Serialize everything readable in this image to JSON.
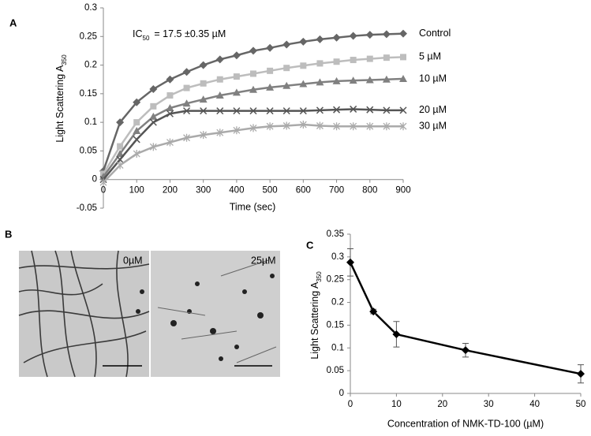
{
  "chart_data": [
    {
      "type": "line",
      "panel_label": "A",
      "annotation": {
        "text_before": "IC",
        "subscript": "50",
        "text_after": "= 17.5 ±0.35 µM"
      },
      "y_label": {
        "text": "Light Scattering A",
        "subscript": "350"
      },
      "x_label": "Time (sec)",
      "x": [
        0,
        50,
        100,
        150,
        200,
        250,
        300,
        350,
        400,
        450,
        500,
        550,
        600,
        650,
        700,
        750,
        800,
        850,
        900
      ],
      "series": [
        {
          "name": "Control",
          "color": "#666666",
          "marker": "diamond",
          "values": [
            0.015,
            0.1,
            0.135,
            0.158,
            0.175,
            0.188,
            0.2,
            0.21,
            0.217,
            0.225,
            0.23,
            0.236,
            0.241,
            0.245,
            0.248,
            0.251,
            0.253,
            0.254,
            0.255
          ]
        },
        {
          "name": "5 µM",
          "color": "#bdbdbd",
          "marker": "square",
          "values": [
            0.01,
            0.058,
            0.1,
            0.128,
            0.147,
            0.16,
            0.168,
            0.175,
            0.18,
            0.185,
            0.19,
            0.195,
            0.199,
            0.203,
            0.206,
            0.209,
            0.211,
            0.213,
            0.214
          ]
        },
        {
          "name": "10 µM",
          "color": "#808080",
          "marker": "triangle",
          "values": [
            0.005,
            0.045,
            0.085,
            0.11,
            0.125,
            0.133,
            0.14,
            0.147,
            0.152,
            0.157,
            0.161,
            0.164,
            0.167,
            0.17,
            0.172,
            0.173,
            0.174,
            0.175,
            0.176
          ]
        },
        {
          "name": "20 µM",
          "color": "#555555",
          "marker": "x",
          "values": [
            0,
            0.035,
            0.07,
            0.1,
            0.115,
            0.12,
            0.12,
            0.12,
            0.12,
            0.12,
            0.12,
            0.12,
            0.12,
            0.121,
            0.122,
            0.123,
            0.122,
            0.121,
            0.121
          ]
        },
        {
          "name": "30 µM",
          "color": "#aaaaaa",
          "marker": "star",
          "values": [
            -0.005,
            0.025,
            0.045,
            0.057,
            0.065,
            0.073,
            0.078,
            0.082,
            0.086,
            0.09,
            0.093,
            0.094,
            0.096,
            0.094,
            0.093,
            0.093,
            0.093,
            0.093,
            0.093
          ]
        }
      ],
      "xlim": [
        0,
        900
      ],
      "xticks": [
        0,
        100,
        200,
        300,
        400,
        500,
        600,
        700,
        800,
        900
      ],
      "ylim": [
        -0.05,
        0.3
      ],
      "yticks": [
        -0.05,
        0,
        0.05,
        0.1,
        0.15,
        0.2,
        0.25,
        0.3
      ]
    },
    {
      "type": "line",
      "panel_label": "C",
      "y_label": {
        "text": "Light Scattering A",
        "subscript": "350"
      },
      "x_label": "Concentration of NMK-TD-100 (µM)",
      "x": [
        0,
        5,
        10,
        25,
        50
      ],
      "values": [
        0.288,
        0.18,
        0.13,
        0.095,
        0.043
      ],
      "errors": [
        0.03,
        0.005,
        0.028,
        0.015,
        0.02
      ],
      "color": "#000000",
      "marker": "diamond",
      "xlim": [
        0,
        50
      ],
      "xticks": [
        0,
        10,
        20,
        30,
        40,
        50
      ],
      "ylim": [
        0,
        0.35
      ],
      "yticks": [
        0,
        0.05,
        0.1,
        0.15,
        0.2,
        0.25,
        0.3,
        0.35
      ]
    }
  ],
  "figure_b": {
    "panel_label": "B",
    "image_labels": [
      "0µM",
      "25µM"
    ]
  }
}
